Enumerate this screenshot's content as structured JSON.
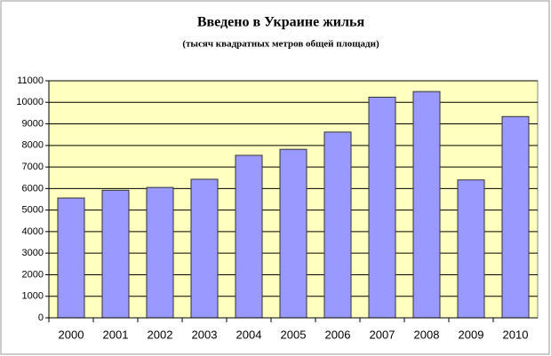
{
  "chart_data": {
    "type": "bar",
    "title": "Введено в Украине жилья",
    "subtitle": "(тысяч квадратных метров общей площади)",
    "categories": [
      "2000",
      "2001",
      "2002",
      "2003",
      "2004",
      "2005",
      "2006",
      "2007",
      "2008",
      "2009",
      "2010"
    ],
    "values": [
      5560,
      5920,
      6050,
      6430,
      7540,
      7820,
      8620,
      10240,
      10500,
      6400,
      9340
    ],
    "color": "#9999ff",
    "ylim": [
      0,
      11000
    ],
    "yticks": [
      0,
      1000,
      2000,
      3000,
      4000,
      5000,
      6000,
      7000,
      8000,
      9000,
      10000,
      11000
    ],
    "grid": true
  }
}
